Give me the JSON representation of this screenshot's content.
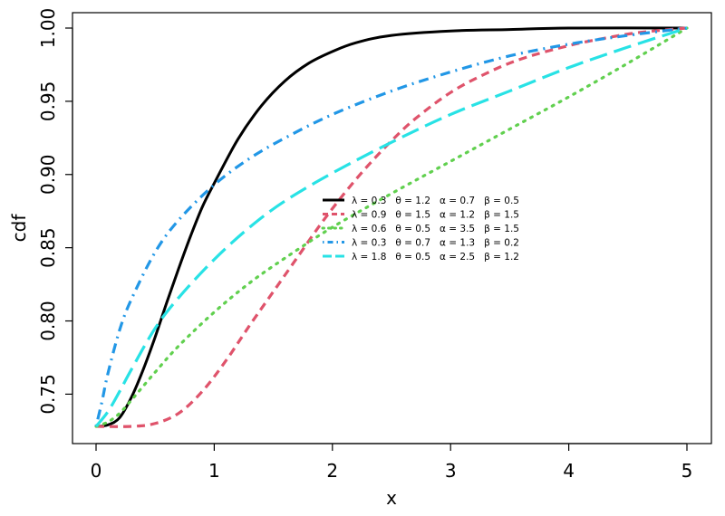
{
  "chart_data": {
    "type": "line",
    "title": "",
    "xlabel": "x",
    "ylabel": "cdf",
    "xlim": [
      0,
      5
    ],
    "ylim": [
      0.728,
      1.0
    ],
    "xticks": [
      "0",
      "1",
      "2",
      "3",
      "4",
      "5"
    ],
    "yticks": [
      "0.75",
      "0.80",
      "0.85",
      "0.90",
      "0.95",
      "1.00"
    ],
    "grid": false,
    "legend_position": "center",
    "series": [
      {
        "name": "λ = 0.3   θ = 1.2   α = 0.7   β = 0.5",
        "color": "#000000",
        "style": "solid",
        "x": [
          0,
          0.1,
          0.2,
          0.3,
          0.4,
          0.5,
          0.6,
          0.7,
          0.8,
          0.9,
          1.0,
          1.2,
          1.4,
          1.6,
          1.8,
          2.0,
          2.2,
          2.5,
          3.0,
          3.5,
          4.0,
          5.0
        ],
        "y": [
          0.728,
          0.729,
          0.734,
          0.748,
          0.767,
          0.789,
          0.813,
          0.836,
          0.858,
          0.878,
          0.894,
          0.924,
          0.947,
          0.964,
          0.976,
          0.984,
          0.99,
          0.995,
          0.998,
          0.999,
          1.0,
          1.0
        ]
      },
      {
        "name": "λ = 0.9   θ = 1.5   α = 1.2   β = 1.5",
        "color": "#df536b",
        "style": "dashed",
        "x": [
          0,
          0.3,
          0.5,
          0.7,
          0.9,
          1.1,
          1.3,
          1.5,
          1.7,
          1.9,
          2.1,
          2.3,
          2.5,
          2.7,
          3.0,
          3.3,
          3.6,
          4.0,
          4.3,
          4.6,
          5.0
        ],
        "y": [
          0.728,
          0.728,
          0.73,
          0.737,
          0.752,
          0.773,
          0.797,
          0.82,
          0.843,
          0.866,
          0.887,
          0.906,
          0.923,
          0.938,
          0.956,
          0.969,
          0.979,
          0.988,
          0.993,
          0.997,
          1.0
        ]
      },
      {
        "name": "λ = 0.6   θ = 0.5   α = 3.5   β = 1.5",
        "color": "#61d04f",
        "style": "dotted",
        "x": [
          0,
          0.1,
          0.2,
          0.3,
          0.5,
          0.7,
          1.0,
          1.3,
          1.6,
          2.0,
          2.5,
          3.0,
          3.5,
          4.0,
          4.5,
          5.0
        ],
        "y": [
          0.728,
          0.731,
          0.737,
          0.746,
          0.765,
          0.783,
          0.806,
          0.826,
          0.843,
          0.864,
          0.887,
          0.909,
          0.931,
          0.953,
          0.976,
          1.0
        ]
      },
      {
        "name": "λ = 0.3   θ = 0.7   α = 1.3   β = 0.2",
        "color": "#2297e6",
        "style": "dotdash",
        "x": [
          0,
          0.05,
          0.1,
          0.2,
          0.3,
          0.5,
          0.7,
          1.0,
          1.3,
          1.6,
          2.0,
          2.5,
          3.0,
          3.5,
          4.0,
          4.5,
          5.0
        ],
        "y": [
          0.728,
          0.745,
          0.764,
          0.794,
          0.815,
          0.847,
          0.869,
          0.893,
          0.911,
          0.925,
          0.941,
          0.957,
          0.97,
          0.981,
          0.989,
          0.995,
          1.0
        ]
      },
      {
        "name": "λ = 1.8   θ = 0.5   α = 2.5   β = 1.2",
        "color": "#28e2e5",
        "style": "longdash",
        "x": [
          0,
          0.1,
          0.2,
          0.3,
          0.5,
          0.7,
          1.0,
          1.3,
          1.6,
          2.0,
          2.5,
          3.0,
          3.5,
          4.0,
          4.5,
          5.0
        ],
        "y": [
          0.728,
          0.738,
          0.752,
          0.767,
          0.795,
          0.816,
          0.842,
          0.864,
          0.882,
          0.901,
          0.922,
          0.941,
          0.957,
          0.973,
          0.987,
          1.0
        ]
      }
    ]
  }
}
